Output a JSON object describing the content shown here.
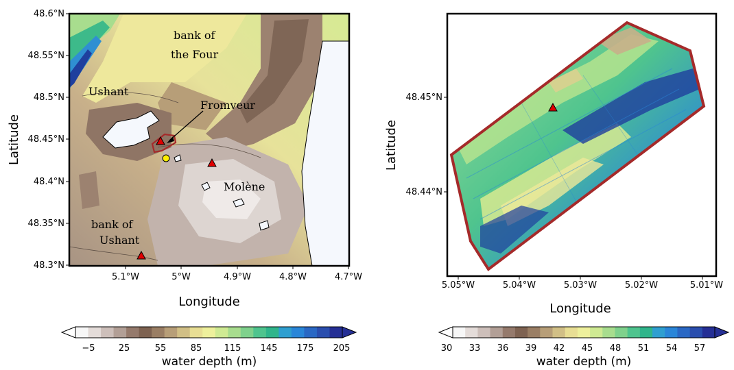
{
  "left_map": {
    "lat_ticks": [
      "48.6°N",
      "48.55°N",
      "48.5°N",
      "48.45°N",
      "48.4°N",
      "48.35°N",
      "48.3°N"
    ],
    "lon_ticks": [
      "5.1°W",
      "5°W",
      "4.9°W",
      "4.8°W",
      "4.7°W"
    ],
    "xlabel": "Longitude",
    "ylabel": "Latitude",
    "places": {
      "bank_four_1": "bank of",
      "bank_four_2": "the Four",
      "ushant": "Ushant",
      "fromveur": "Fromveur",
      "molene": "Molène",
      "bank_ushant_1": "bank of",
      "bank_ushant_2": "Ushant"
    },
    "colorbar": {
      "ticks": [
        "−5",
        "25",
        "55",
        "85",
        "115",
        "145",
        "175",
        "205"
      ],
      "label": "water depth (m)"
    }
  },
  "right_map": {
    "lat_ticks": [
      "48.45°N",
      "48.44°N"
    ],
    "lon_ticks": [
      "5.05°W",
      "5.04°W",
      "5.03°W",
      "5.02°W",
      "5.01°W"
    ],
    "xlabel": "Longitude",
    "ylabel": "Latitude",
    "colorbar": {
      "ticks": [
        "30",
        "33",
        "36",
        "39",
        "42",
        "45",
        "48",
        "51",
        "54",
        "57"
      ],
      "label": "water depth (m)"
    }
  },
  "colors": {
    "domain_outline": "#a52a2a",
    "marker_triangle": "#e00000",
    "marker_circle": "#ffee00",
    "land": "#f5f8fd"
  }
}
